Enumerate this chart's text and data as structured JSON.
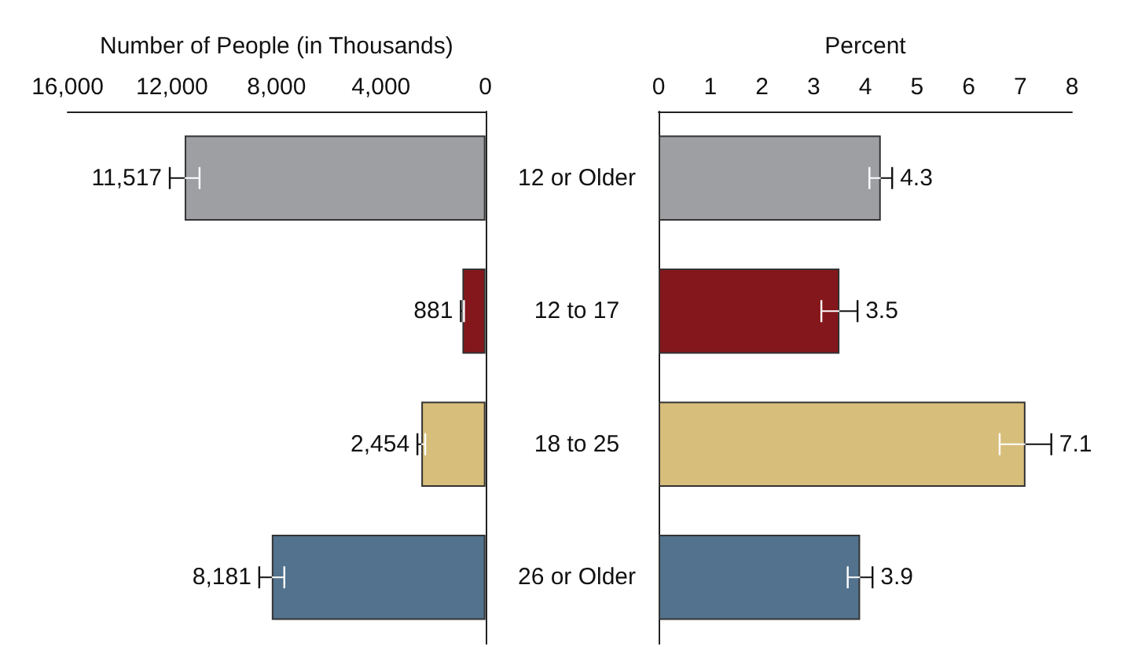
{
  "chart_data": [
    {
      "type": "bar",
      "orientation": "horizontal",
      "xlabel": "Number of People (in Thousands)",
      "values": [
        11517,
        881,
        2454,
        8181
      ],
      "colors": [
        "#9d9fa3",
        "#84171b",
        "#d7be7b",
        "#52728d"
      ],
      "errors": [
        570,
        60,
        150,
        480
      ],
      "value_labels": [
        "11,517",
        "881",
        "2,454",
        "8,181"
      ],
      "xlim": [
        16000,
        0
      ],
      "xticks": [
        {
          "value": 16000,
          "label": "16,000"
        },
        {
          "value": 12000,
          "label": "12,000"
        },
        {
          "value": 8000,
          "label": "8,000"
        },
        {
          "value": 4000,
          "label": "4,000"
        },
        0
      ],
      "tick_labels": "x"
    },
    {
      "type": "bar",
      "orientation": "horizontal",
      "xlabel": "Percent",
      "categories": [
        "12 or Older",
        "12 to 17",
        "18 to 25",
        "26 or Older"
      ],
      "values": [
        4.3,
        3.5,
        7.1,
        3.9
      ],
      "colors": [
        "#9d9fa3",
        "#84171b",
        "#d7be7b",
        "#52728d"
      ],
      "errors": [
        0.22,
        0.35,
        0.5,
        0.24
      ],
      "data_labels": true,
      "xlim": [
        0,
        8
      ],
      "xticks": [
        0,
        1,
        2,
        3,
        4,
        5,
        6,
        7,
        8
      ]
    }
  ]
}
